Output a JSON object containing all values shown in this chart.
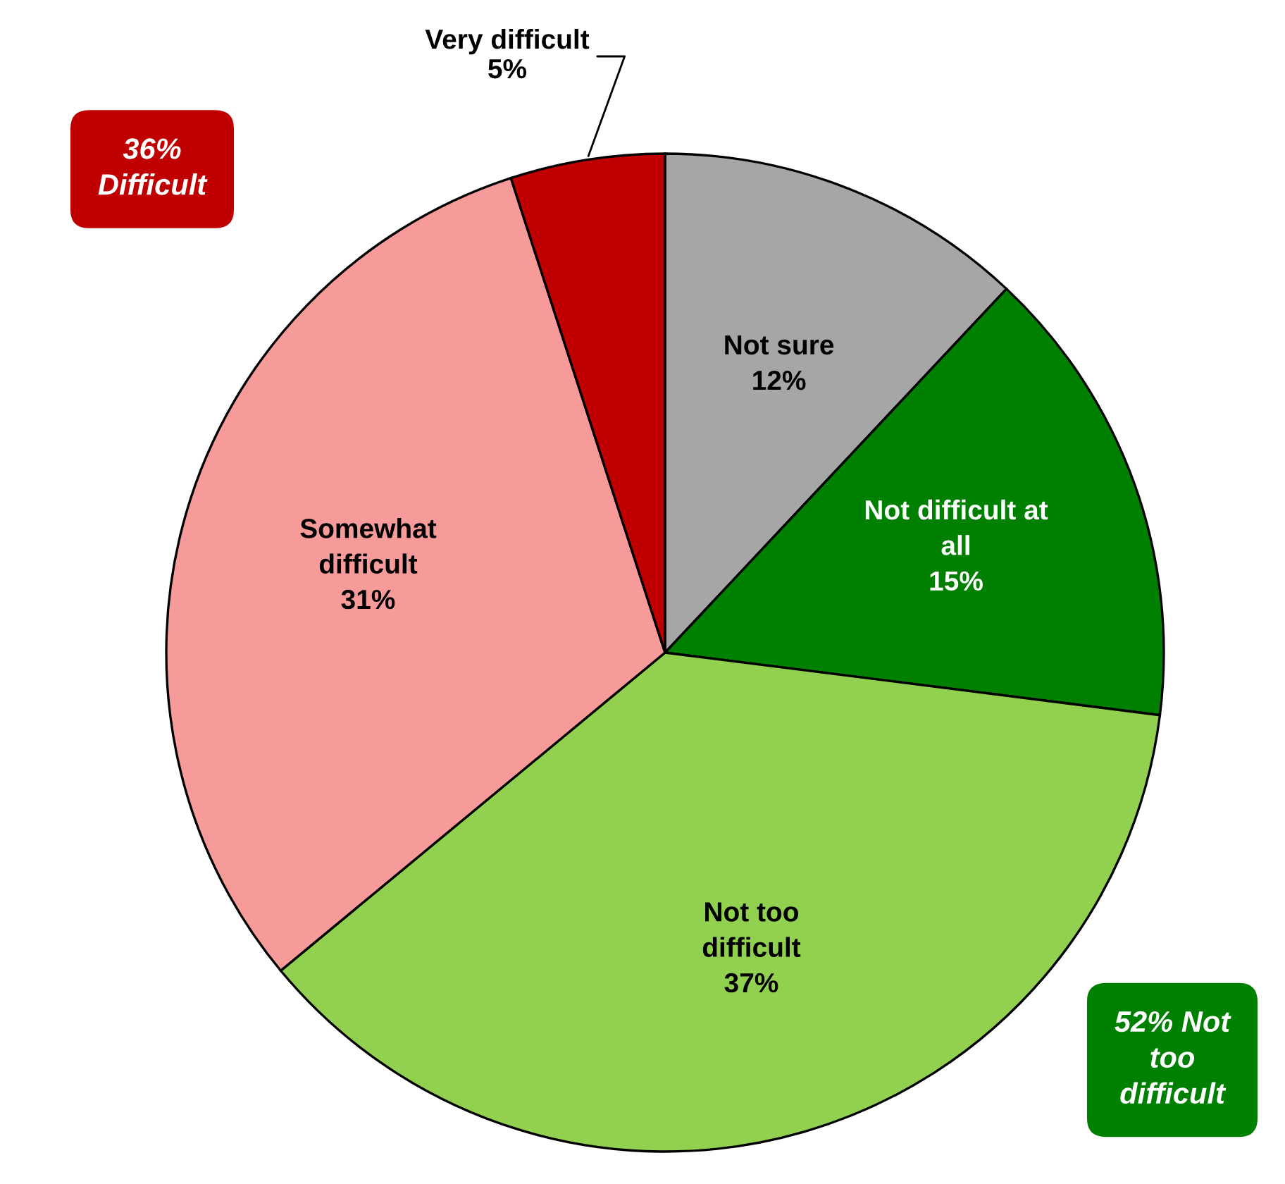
{
  "chart_data": {
    "type": "pie",
    "categories": [
      "Not sure",
      "Not difficult at all",
      "Not too difficult",
      "Somewhat difficult",
      "Very difficult"
    ],
    "values": [
      12,
      15,
      37,
      31,
      5
    ],
    "value_labels": [
      "12%",
      "15%",
      "37%",
      "31%",
      "5%"
    ],
    "colors": [
      "#a6a6a6",
      "#008000",
      "#92d050",
      "#f79a9a",
      "#c00000"
    ],
    "annotations": [
      "36%\nDifficult",
      "52% Not\ntoo\ndifficult"
    ]
  }
}
